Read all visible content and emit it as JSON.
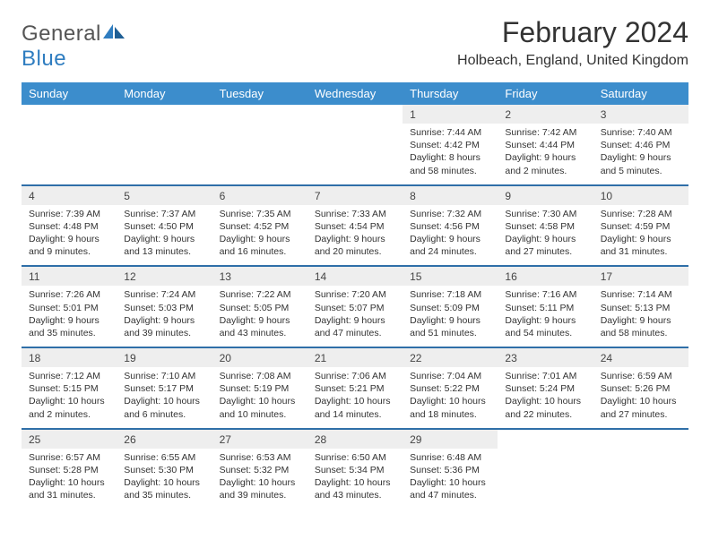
{
  "brand": {
    "part1": "General",
    "part2": "Blue"
  },
  "title": "February 2024",
  "location": "Holbeach, England, United Kingdom",
  "colors": {
    "header_bg": "#3c8dcc",
    "header_text": "#ffffff",
    "daynum_bg": "#eeeeee",
    "rule": "#2f6fa8",
    "brand_blue": "#2f7dc0",
    "text": "#333333"
  },
  "fonts": {
    "title_size": 32,
    "location_size": 16,
    "dow_size": 13,
    "daynum_size": 12,
    "cell_size": 10.5
  },
  "daysOfWeek": [
    "Sunday",
    "Monday",
    "Tuesday",
    "Wednesday",
    "Thursday",
    "Friday",
    "Saturday"
  ],
  "weeks": [
    [
      null,
      null,
      null,
      null,
      {
        "n": "1",
        "sr": "Sunrise: 7:44 AM",
        "ss": "Sunset: 4:42 PM",
        "d1": "Daylight: 8 hours",
        "d2": "and 58 minutes."
      },
      {
        "n": "2",
        "sr": "Sunrise: 7:42 AM",
        "ss": "Sunset: 4:44 PM",
        "d1": "Daylight: 9 hours",
        "d2": "and 2 minutes."
      },
      {
        "n": "3",
        "sr": "Sunrise: 7:40 AM",
        "ss": "Sunset: 4:46 PM",
        "d1": "Daylight: 9 hours",
        "d2": "and 5 minutes."
      }
    ],
    [
      {
        "n": "4",
        "sr": "Sunrise: 7:39 AM",
        "ss": "Sunset: 4:48 PM",
        "d1": "Daylight: 9 hours",
        "d2": "and 9 minutes."
      },
      {
        "n": "5",
        "sr": "Sunrise: 7:37 AM",
        "ss": "Sunset: 4:50 PM",
        "d1": "Daylight: 9 hours",
        "d2": "and 13 minutes."
      },
      {
        "n": "6",
        "sr": "Sunrise: 7:35 AM",
        "ss": "Sunset: 4:52 PM",
        "d1": "Daylight: 9 hours",
        "d2": "and 16 minutes."
      },
      {
        "n": "7",
        "sr": "Sunrise: 7:33 AM",
        "ss": "Sunset: 4:54 PM",
        "d1": "Daylight: 9 hours",
        "d2": "and 20 minutes."
      },
      {
        "n": "8",
        "sr": "Sunrise: 7:32 AM",
        "ss": "Sunset: 4:56 PM",
        "d1": "Daylight: 9 hours",
        "d2": "and 24 minutes."
      },
      {
        "n": "9",
        "sr": "Sunrise: 7:30 AM",
        "ss": "Sunset: 4:58 PM",
        "d1": "Daylight: 9 hours",
        "d2": "and 27 minutes."
      },
      {
        "n": "10",
        "sr": "Sunrise: 7:28 AM",
        "ss": "Sunset: 4:59 PM",
        "d1": "Daylight: 9 hours",
        "d2": "and 31 minutes."
      }
    ],
    [
      {
        "n": "11",
        "sr": "Sunrise: 7:26 AM",
        "ss": "Sunset: 5:01 PM",
        "d1": "Daylight: 9 hours",
        "d2": "and 35 minutes."
      },
      {
        "n": "12",
        "sr": "Sunrise: 7:24 AM",
        "ss": "Sunset: 5:03 PM",
        "d1": "Daylight: 9 hours",
        "d2": "and 39 minutes."
      },
      {
        "n": "13",
        "sr": "Sunrise: 7:22 AM",
        "ss": "Sunset: 5:05 PM",
        "d1": "Daylight: 9 hours",
        "d2": "and 43 minutes."
      },
      {
        "n": "14",
        "sr": "Sunrise: 7:20 AM",
        "ss": "Sunset: 5:07 PM",
        "d1": "Daylight: 9 hours",
        "d2": "and 47 minutes."
      },
      {
        "n": "15",
        "sr": "Sunrise: 7:18 AM",
        "ss": "Sunset: 5:09 PM",
        "d1": "Daylight: 9 hours",
        "d2": "and 51 minutes."
      },
      {
        "n": "16",
        "sr": "Sunrise: 7:16 AM",
        "ss": "Sunset: 5:11 PM",
        "d1": "Daylight: 9 hours",
        "d2": "and 54 minutes."
      },
      {
        "n": "17",
        "sr": "Sunrise: 7:14 AM",
        "ss": "Sunset: 5:13 PM",
        "d1": "Daylight: 9 hours",
        "d2": "and 58 minutes."
      }
    ],
    [
      {
        "n": "18",
        "sr": "Sunrise: 7:12 AM",
        "ss": "Sunset: 5:15 PM",
        "d1": "Daylight: 10 hours",
        "d2": "and 2 minutes."
      },
      {
        "n": "19",
        "sr": "Sunrise: 7:10 AM",
        "ss": "Sunset: 5:17 PM",
        "d1": "Daylight: 10 hours",
        "d2": "and 6 minutes."
      },
      {
        "n": "20",
        "sr": "Sunrise: 7:08 AM",
        "ss": "Sunset: 5:19 PM",
        "d1": "Daylight: 10 hours",
        "d2": "and 10 minutes."
      },
      {
        "n": "21",
        "sr": "Sunrise: 7:06 AM",
        "ss": "Sunset: 5:21 PM",
        "d1": "Daylight: 10 hours",
        "d2": "and 14 minutes."
      },
      {
        "n": "22",
        "sr": "Sunrise: 7:04 AM",
        "ss": "Sunset: 5:22 PM",
        "d1": "Daylight: 10 hours",
        "d2": "and 18 minutes."
      },
      {
        "n": "23",
        "sr": "Sunrise: 7:01 AM",
        "ss": "Sunset: 5:24 PM",
        "d1": "Daylight: 10 hours",
        "d2": "and 22 minutes."
      },
      {
        "n": "24",
        "sr": "Sunrise: 6:59 AM",
        "ss": "Sunset: 5:26 PM",
        "d1": "Daylight: 10 hours",
        "d2": "and 27 minutes."
      }
    ],
    [
      {
        "n": "25",
        "sr": "Sunrise: 6:57 AM",
        "ss": "Sunset: 5:28 PM",
        "d1": "Daylight: 10 hours",
        "d2": "and 31 minutes."
      },
      {
        "n": "26",
        "sr": "Sunrise: 6:55 AM",
        "ss": "Sunset: 5:30 PM",
        "d1": "Daylight: 10 hours",
        "d2": "and 35 minutes."
      },
      {
        "n": "27",
        "sr": "Sunrise: 6:53 AM",
        "ss": "Sunset: 5:32 PM",
        "d1": "Daylight: 10 hours",
        "d2": "and 39 minutes."
      },
      {
        "n": "28",
        "sr": "Sunrise: 6:50 AM",
        "ss": "Sunset: 5:34 PM",
        "d1": "Daylight: 10 hours",
        "d2": "and 43 minutes."
      },
      {
        "n": "29",
        "sr": "Sunrise: 6:48 AM",
        "ss": "Sunset: 5:36 PM",
        "d1": "Daylight: 10 hours",
        "d2": "and 47 minutes."
      },
      null,
      null
    ]
  ]
}
